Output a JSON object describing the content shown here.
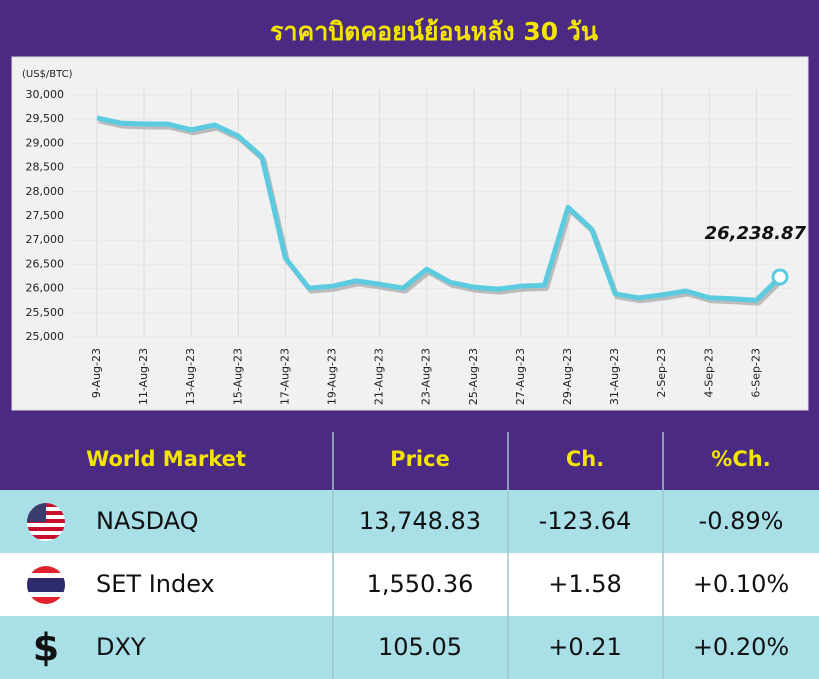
{
  "chart_data": {
    "type": "line",
    "title": "ราคาบิตคอยน์ย้อนหลัง 30 วัน",
    "y_label": "(US$/BTC)",
    "categories": [
      "9-Aug-23",
      null,
      "11-Aug-23",
      null,
      "13-Aug-23",
      null,
      "15-Aug-23",
      null,
      "17-Aug-23",
      null,
      "19-Aug-23",
      null,
      "21-Aug-23",
      null,
      "23-Aug-23",
      null,
      "25-Aug-23",
      null,
      "27-Aug-23",
      null,
      "29-Aug-23",
      null,
      "31-Aug-23",
      null,
      "2-Sep-23",
      null,
      "4-Sep-23",
      null,
      "6-Sep-23",
      null
    ],
    "values": [
      29525,
      29420,
      29400,
      29400,
      29280,
      29380,
      29150,
      28720,
      26630,
      26010,
      26050,
      26160,
      26090,
      26010,
      26400,
      26130,
      26030,
      25990,
      26050,
      26070,
      27680,
      27230,
      25890,
      25810,
      25870,
      25950,
      25810,
      25790,
      25760,
      26238.87
    ],
    "value_labels": [
      null,
      null,
      null,
      null,
      null,
      null,
      null,
      null,
      null,
      null,
      null,
      null,
      null,
      null,
      null,
      null,
      null,
      null,
      null,
      null,
      null,
      null,
      null,
      null,
      null,
      null,
      null,
      null,
      null,
      "26,238.87"
    ],
    "color": "#5ccbdf",
    "ylim": [
      25000,
      30000
    ],
    "yticks": [
      {
        "value": 25000,
        "label": "25,000"
      },
      {
        "value": 25500,
        "label": "25,500"
      },
      {
        "value": 26000,
        "label": "26,000"
      },
      {
        "value": 26500,
        "label": "26,500"
      },
      {
        "value": 27000,
        "label": "27,000"
      },
      {
        "value": 27500,
        "label": "27,500"
      },
      {
        "value": 28000,
        "label": "28,000"
      },
      {
        "value": 28500,
        "label": "28,500"
      },
      {
        "value": 29000,
        "label": "29,000"
      },
      {
        "value": 29500,
        "label": "29,500"
      },
      {
        "value": 30000,
        "label": "30,000"
      }
    ],
    "grid": true
  },
  "table": {
    "header": [
      "World Market",
      "Price",
      "Ch.",
      "%Ch."
    ],
    "rows": [
      {
        "flag": "us",
        "cells": [
          "NASDAQ",
          "13,748.83",
          "-123.64",
          "-0.89%"
        ]
      },
      {
        "flag": "th",
        "cells": [
          "SET Index",
          "1,550.36",
          "+1.58",
          "+0.10%"
        ]
      },
      {
        "icon": "$",
        "cells": [
          "DXY",
          "105.05",
          "+0.21",
          "+0.20%"
        ]
      }
    ]
  }
}
